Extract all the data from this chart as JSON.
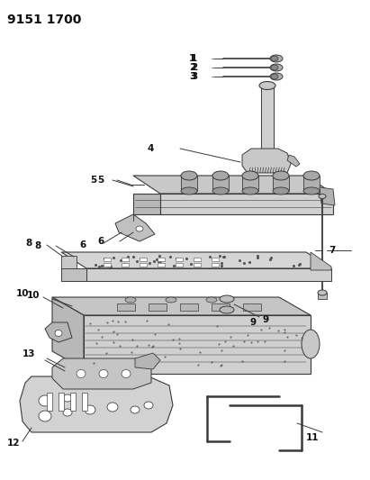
{
  "title": "9151 1700",
  "bg_color": "#ffffff",
  "lc": "#3a3a3a",
  "figsize": [
    4.11,
    5.33
  ],
  "dpi": 100,
  "title_fs": 10,
  "lbl_fs": 7.5
}
